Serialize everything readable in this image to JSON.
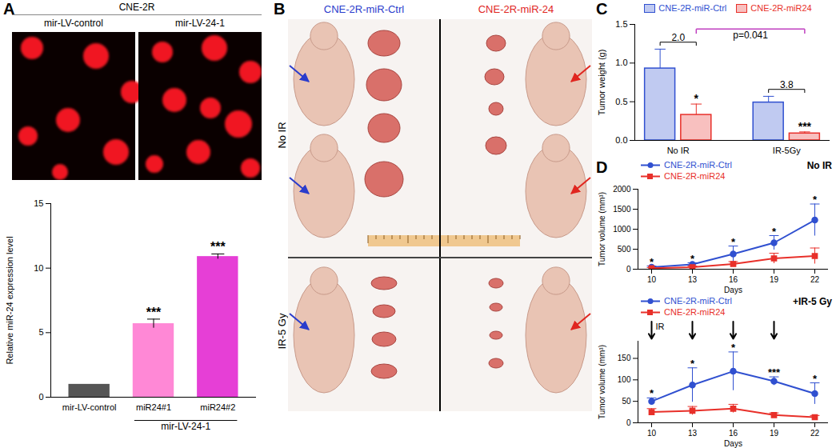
{
  "panel_A_images": {
    "panel": "A",
    "title": "CNE-2R",
    "labels": [
      "mir-LV-control",
      "mir-LV-24-1"
    ]
  },
  "panel_B_photos": {
    "panel": "B",
    "columns": [
      {
        "name": "CNE-2R-miR-Ctrl",
        "color": "#2a3ccc"
      },
      {
        "name": "CNE-2R-miR-24",
        "color": "#e0261f"
      }
    ],
    "rows": [
      "No IR",
      "IR-5 Gy"
    ]
  },
  "chart_data": [
    {
      "type": "bar",
      "categories": [
        "mir-LV-control",
        "miR24#1",
        "miR24#2"
      ],
      "values": [
        1,
        5.7,
        10.9
      ],
      "errors": [
        null,
        0.35,
        0.2
      ],
      "colors": [
        "#555555",
        "#ff88d6",
        "#e63fd6"
      ],
      "significance": [
        null,
        "***",
        "***"
      ],
      "group": {
        "label": "mir-LV-24-1",
        "categories": [
          "miR24#1",
          "miR24#2"
        ]
      },
      "ylabel": "Relative miR-24 expression level",
      "ylim": [
        0,
        15
      ],
      "yticks": [
        0,
        5,
        10,
        15
      ]
    },
    {
      "type": "bar",
      "panel": "C",
      "categories": [
        "No IR",
        "IR-5Gy"
      ],
      "series": [
        {
          "name": "CNE-2R-miR-Ctrl",
          "color": "#3050d0",
          "values": [
            0.93,
            0.49
          ],
          "errors": [
            0.25,
            0.08
          ]
        },
        {
          "name": "CNE-2R-miR24",
          "color": "#e8302a",
          "values": [
            0.33,
            0.09
          ],
          "errors": [
            0.14,
            0.02
          ],
          "significance": [
            "*",
            "***"
          ]
        }
      ],
      "comparisons": [
        {
          "category": "No IR",
          "text": "2.0"
        },
        {
          "category": "IR-5Gy",
          "text": "3.8"
        },
        {
          "from": "No IR",
          "to": "IR-5Gy",
          "series": "CNE-2R-miR24",
          "text": "p=0.041"
        }
      ],
      "ylabel": "Tumor weight (g)",
      "ylim": [
        0,
        1.5
      ],
      "yticks": [
        {
          "value": 0,
          "label": "0.0"
        },
        0.5,
        {
          "value": 1,
          "label": "1.0"
        },
        1.5
      ],
      "legend": "top"
    },
    {
      "type": "line",
      "panel": "D",
      "title": "No IR",
      "x": [
        10,
        13,
        16,
        19,
        22
      ],
      "series": [
        {
          "name": "CNE-2R-miR-Ctrl",
          "color": "#3050d0",
          "marker": "circle",
          "values": [
            50,
            120,
            380,
            660,
            1230
          ],
          "errors": [
            30,
            40,
            200,
            180,
            400
          ],
          "significance": [
            "*",
            "*",
            "*",
            "*",
            "*"
          ]
        },
        {
          "name": "CNE-2R-miR24",
          "color": "#e8302a",
          "marker": "square",
          "values": [
            25,
            50,
            130,
            270,
            330
          ],
          "errors": [
            15,
            30,
            60,
            130,
            200
          ]
        }
      ],
      "xlabel": "Days",
      "ylabel": "Tumor volume (mm³)",
      "xlim": [
        9,
        23
      ],
      "xticks": [
        10,
        13,
        16,
        19,
        22
      ],
      "ylim": [
        0,
        2000
      ],
      "yticks": [
        0,
        500,
        1000,
        1500,
        2000
      ],
      "legend": "top-left"
    },
    {
      "type": "line",
      "title": "+IR-5 Gy",
      "x": [
        10,
        13,
        16,
        19,
        22
      ],
      "series": [
        {
          "name": "CNE-2R-miR-Ctrl",
          "color": "#3050d0",
          "marker": "circle",
          "values": [
            50,
            88,
            120,
            97,
            68
          ],
          "errors": [
            8,
            40,
            45,
            10,
            25
          ],
          "significance": [
            "*",
            "*",
            "*",
            "***",
            "*"
          ]
        },
        {
          "name": "CNE-2R-miR24",
          "color": "#e8302a",
          "marker": "square",
          "values": [
            25,
            28,
            33,
            18,
            13
          ],
          "errors": [
            8,
            10,
            10,
            5,
            4
          ]
        }
      ],
      "irradiation": {
        "label": "IR",
        "days": [
          10,
          13,
          16,
          19
        ]
      },
      "xlabel": "Days",
      "ylabel": "Tumor volume (mm³)",
      "xlim": [
        9,
        23
      ],
      "xticks": [
        10,
        13,
        16,
        19,
        22
      ],
      "ylim": [
        0,
        190
      ],
      "yticks": [
        0,
        50,
        100,
        150
      ],
      "legend": "top-left"
    }
  ]
}
